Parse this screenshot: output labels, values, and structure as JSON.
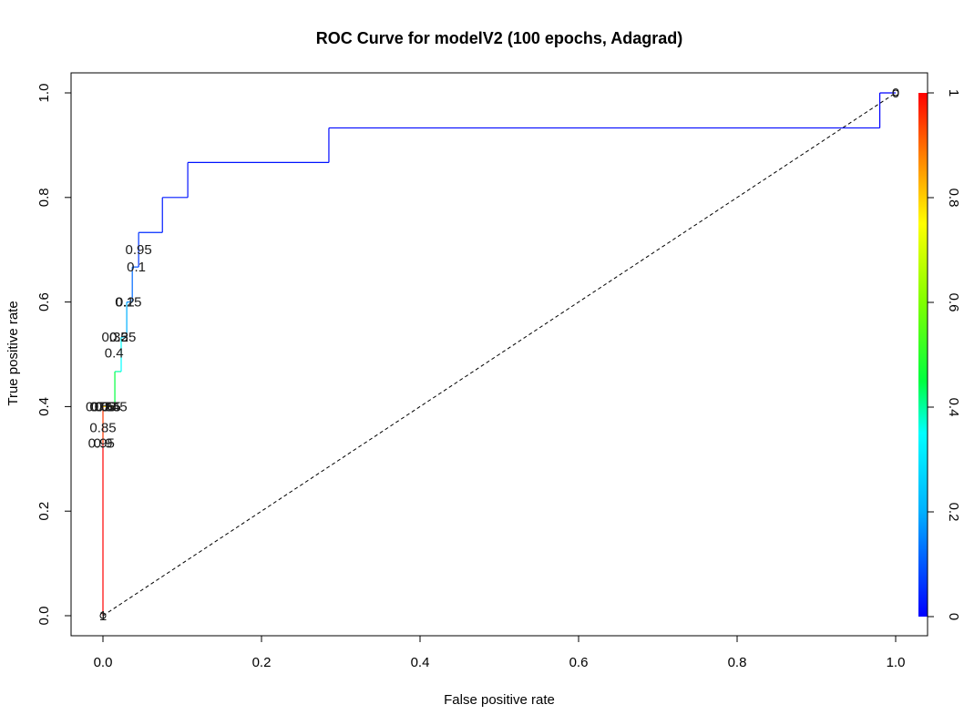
{
  "chart_data": {
    "type": "line",
    "title": "ROC Curve for modelV2 (100 epochs, Adagrad)",
    "xlabel": "False positive rate",
    "ylabel": "True positive rate",
    "xlim": [
      0,
      1
    ],
    "ylim": [
      0,
      1
    ],
    "x_ticks": [
      "0.0",
      "0.2",
      "0.4",
      "0.6",
      "0.8",
      "1.0"
    ],
    "y_ticks": [
      "0.0",
      "0.2",
      "0.4",
      "0.6",
      "0.8",
      "1.0"
    ],
    "colorbar": {
      "ticks": [
        "0",
        "0.2",
        "0.4",
        "0.6",
        "0.8",
        "1"
      ],
      "colors": [
        "#0000ff",
        "#00ffff",
        "#00ff00",
        "#ffff00",
        "#ff8000",
        "#ff0000"
      ]
    },
    "series": [
      {
        "points": [
          {
            "x": 0.0,
            "y": 0.0,
            "c": 1.0
          },
          {
            "x": 0.0,
            "y": 0.33,
            "c": 0.95
          },
          {
            "x": 0.0,
            "y": 0.4,
            "c": 0.8
          },
          {
            "x": 0.015,
            "y": 0.4,
            "c": 0.45
          },
          {
            "x": 0.015,
            "y": 0.467,
            "c": 0.4
          },
          {
            "x": 0.023,
            "y": 0.467,
            "c": 0.35
          },
          {
            "x": 0.023,
            "y": 0.533,
            "c": 0.25
          },
          {
            "x": 0.03,
            "y": 0.533,
            "c": 0.2
          },
          {
            "x": 0.03,
            "y": 0.6,
            "c": 0.15
          },
          {
            "x": 0.037,
            "y": 0.6,
            "c": 0.12
          },
          {
            "x": 0.037,
            "y": 0.667,
            "c": 0.1
          },
          {
            "x": 0.045,
            "y": 0.667,
            "c": 0.06
          },
          {
            "x": 0.045,
            "y": 0.733,
            "c": 0.05
          },
          {
            "x": 0.075,
            "y": 0.733,
            "c": 0.03
          },
          {
            "x": 0.075,
            "y": 0.8,
            "c": 0.03
          },
          {
            "x": 0.107,
            "y": 0.8,
            "c": 0.02
          },
          {
            "x": 0.107,
            "y": 0.867,
            "c": 0.02
          },
          {
            "x": 0.285,
            "y": 0.867,
            "c": 0.01
          },
          {
            "x": 0.285,
            "y": 0.933,
            "c": 0.01
          },
          {
            "x": 0.98,
            "y": 0.933,
            "c": 0.0
          },
          {
            "x": 0.98,
            "y": 1.0,
            "c": 0.0
          },
          {
            "x": 1.0,
            "y": 1.0,
            "c": 0.0
          }
        ]
      }
    ],
    "diagonal": [
      [
        0,
        0
      ],
      [
        1,
        1
      ]
    ],
    "cutoff_labels": [
      {
        "text": "0.95",
        "x": 0.045,
        "y": 0.7
      },
      {
        "text": "0.1",
        "x": 0.042,
        "y": 0.667
      },
      {
        "text": "0.15",
        "x": 0.032,
        "y": 0.6
      },
      {
        "text": "0.2",
        "x": 0.028,
        "y": 0.6
      },
      {
        "text": "0.25",
        "x": 0.025,
        "y": 0.533
      },
      {
        "text": "0.3",
        "x": 0.02,
        "y": 0.533
      },
      {
        "text": "0.35",
        "x": 0.015,
        "y": 0.533
      },
      {
        "text": "0.4",
        "x": 0.014,
        "y": 0.503
      },
      {
        "text": "0.45",
        "x": 0.014,
        "y": 0.4
      },
      {
        "text": "0.5",
        "x": 0.01,
        "y": 0.4
      },
      {
        "text": "0.55",
        "x": 0.006,
        "y": 0.4
      },
      {
        "text": "0.6",
        "x": 0.003,
        "y": 0.4
      },
      {
        "text": "0.65",
        "x": 0.0,
        "y": 0.4
      },
      {
        "text": "0.7",
        "x": -0.003,
        "y": 0.4
      },
      {
        "text": "0.75",
        "x": -0.005,
        "y": 0.4
      },
      {
        "text": "0.85",
        "x": 0.0,
        "y": 0.36
      },
      {
        "text": "0.9",
        "x": 0.0,
        "y": 0.33
      },
      {
        "text": "0.95",
        "x": -0.002,
        "y": 0.33
      },
      {
        "text": "1",
        "x": 0.0,
        "y": 0.0
      },
      {
        "text": "0",
        "x": 1.0,
        "y": 1.0
      }
    ]
  }
}
